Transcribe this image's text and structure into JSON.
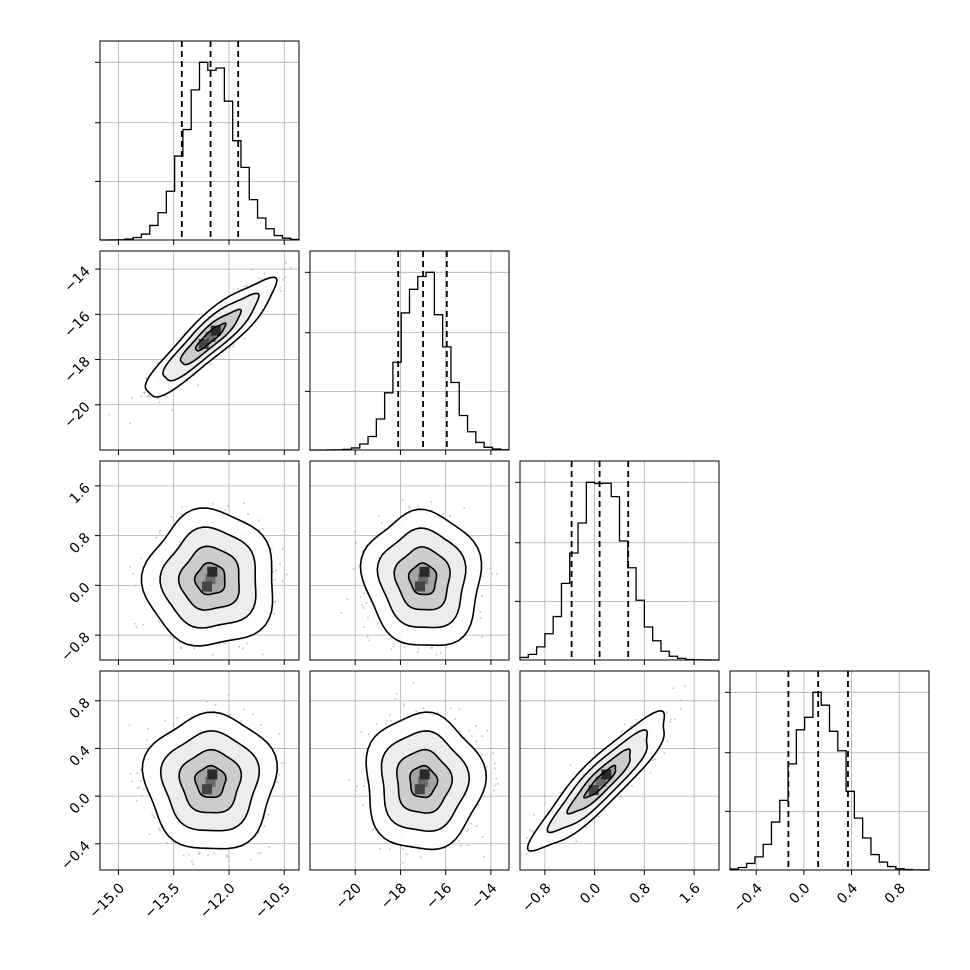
{
  "chart_data": {
    "type": "corner",
    "n_params": 4,
    "grid": true,
    "colors": {
      "line": "#000000",
      "scatter": "#9e9e9e",
      "grid": "#b0b0b0"
    },
    "params": [
      {
        "range": [
          -15.5,
          -10.1
        ],
        "ticks": [
          -15.0,
          -13.5,
          -12.0,
          -10.5
        ],
        "tick_labels": [
          "−15.0",
          "−13.5",
          "−12.0",
          "−10.5"
        ],
        "mean": -12.5,
        "sd": 0.68,
        "quantiles": [
          -13.28,
          -12.5,
          -11.75
        ],
        "peak": -12.5
      },
      {
        "range": [
          -22.0,
          -13.2
        ],
        "ticks": [
          -20,
          -18,
          -16,
          -14
        ],
        "tick_labels": [
          "−20",
          "−18",
          "−16",
          "−14"
        ],
        "x_ticks": [
          -20,
          -18,
          -16,
          -14
        ],
        "x_tick_labels": [
          "−20",
          "−18",
          "−16",
          "−14"
        ],
        "mean": -17.0,
        "sd": 1.0,
        "quantiles": [
          -18.1,
          -17.0,
          -15.95
        ],
        "peak": -16.95
      },
      {
        "range": [
          -1.2,
          2.0
        ],
        "ticks": [
          -0.8,
          0.0,
          0.8,
          1.6
        ],
        "tick_labels": [
          "−0.8",
          "0.0",
          "0.8",
          "1.6"
        ],
        "x_ticks": [
          -0.8,
          0.0,
          0.8,
          1.6
        ],
        "x_tick_labels": [
          "−0.8",
          "0.0",
          "0.8",
          "1.6"
        ],
        "mean": 0.1,
        "sd": 0.42,
        "quantiles": [
          -0.37,
          0.08,
          0.54
        ],
        "peak": 0.08
      },
      {
        "range": [
          -0.62,
          1.05
        ],
        "ticks": [
          -0.4,
          0.0,
          0.4,
          0.8
        ],
        "tick_labels": [
          "−0.4",
          "0.0",
          "0.4",
          "0.8"
        ],
        "x_ticks": [
          -0.4,
          0.0,
          0.4,
          0.8
        ],
        "x_tick_labels": [
          "−0.4",
          "0.0",
          "0.4",
          "0.8"
        ],
        "mean": 0.12,
        "sd": 0.22,
        "quantiles": [
          -0.13,
          0.12,
          0.37
        ],
        "peak": 0.12
      }
    ],
    "correlations": [
      {
        "i": 1,
        "j": 0,
        "rho": 0.9
      },
      {
        "i": 2,
        "j": 0,
        "rho": 0.0
      },
      {
        "i": 2,
        "j": 1,
        "rho": -0.05
      },
      {
        "i": 3,
        "j": 0,
        "rho": 0.0
      },
      {
        "i": 3,
        "j": 1,
        "rho": 0.0
      },
      {
        "i": 3,
        "j": 2,
        "rho": 0.9
      }
    ]
  }
}
